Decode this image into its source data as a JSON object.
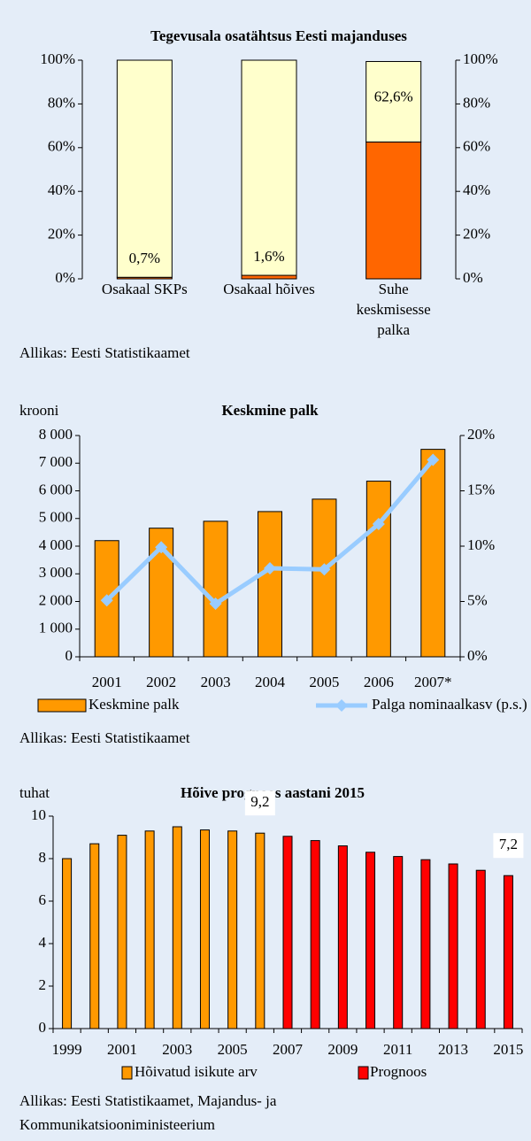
{
  "chart_data": [
    {
      "type": "bar",
      "stacked": true,
      "title": "Tegevusala osatähtsus Eesti majanduses",
      "categories": [
        "Osakaal SKPs",
        "Osakaal hõives",
        "Suhe keskmisesse palka"
      ],
      "series": [
        {
          "color": "#ff6600",
          "values": [
            0.7,
            1.6,
            62.6
          ],
          "value_labels": [
            "0,7%",
            "1,6%",
            "62,6%"
          ]
        },
        {
          "color": "#ffffcc",
          "values": [
            99.3,
            98.4,
            36.8
          ]
        }
      ],
      "ylim": [
        0,
        100
      ],
      "yticks": [
        {
          "value": 0,
          "label": "0%"
        },
        {
          "value": 20,
          "label": "20%"
        },
        {
          "value": 40,
          "label": "40%"
        },
        {
          "value": 60,
          "label": "60%"
        },
        {
          "value": 80,
          "label": "80%"
        },
        {
          "value": 100,
          "label": "100%"
        }
      ],
      "y2lim": [
        0,
        100
      ],
      "y2ticks": [
        {
          "value": 0,
          "label": "0%"
        },
        {
          "value": 20,
          "label": "20%"
        },
        {
          "value": 40,
          "label": "40%"
        },
        {
          "value": 60,
          "label": "60%"
        },
        {
          "value": 80,
          "label": "80%"
        },
        {
          "value": 100,
          "label": "100%"
        }
      ],
      "grid": false,
      "source": [
        "Allikas: Eesti Statistikaamet"
      ]
    },
    {
      "type": "bar",
      "title": "Keskmine palk",
      "y_label": "krooni",
      "categories": [
        "2001",
        "2002",
        "2003",
        "2004",
        "2005",
        "2006",
        "2007*"
      ],
      "series": [
        {
          "name": "Keskmine palk",
          "color": "#ff9900",
          "values": [
            4200,
            4650,
            4900,
            5250,
            5700,
            6350,
            7500
          ]
        },
        {
          "name": "Palga nominaalkasv (p.s.)",
          "type": "line",
          "axis": "y2",
          "color": "#99ccff",
          "values": [
            5.1,
            9.9,
            4.8,
            8.0,
            7.9,
            12.0,
            17.8
          ]
        }
      ],
      "ylim": [
        0,
        8000
      ],
      "yticks": [
        0,
        {
          "value": 1000,
          "label": "1 000"
        },
        {
          "value": 2000,
          "label": "2 000"
        },
        {
          "value": 3000,
          "label": "3 000"
        },
        {
          "value": 4000,
          "label": "4 000"
        },
        {
          "value": 5000,
          "label": "5 000"
        },
        {
          "value": 6000,
          "label": "6 000"
        },
        {
          "value": 7000,
          "label": "7 000"
        },
        {
          "value": 8000,
          "label": "8 000"
        }
      ],
      "y2lim": [
        0,
        20
      ],
      "y2ticks": [
        {
          "value": 0,
          "label": "0%"
        },
        {
          "value": 5,
          "label": "5%"
        },
        {
          "value": 10,
          "label": "10%"
        },
        {
          "value": 15,
          "label": "15%"
        },
        {
          "value": 20,
          "label": "20%"
        }
      ],
      "grid": false,
      "legend": "bottom",
      "source": [
        "Allikas: Eesti Statistikaamet"
      ]
    },
    {
      "type": "bar",
      "stacked": true,
      "title": "Hõive prognoos aastani 2015",
      "y_label": "tuhat",
      "categories": [
        "1999",
        null,
        "2001",
        null,
        "2003",
        null,
        "2005",
        null,
        "2007",
        null,
        "2009",
        null,
        "2011",
        null,
        "2013",
        null,
        "2015"
      ],
      "series": [
        {
          "name": "Hõivatud isikute arv",
          "color": "#ff9900",
          "values": [
            8.0,
            8.7,
            9.1,
            9.3,
            9.5,
            9.35,
            9.3,
            9.2,
            null,
            null,
            null,
            null,
            null,
            null,
            null,
            null,
            null
          ],
          "value_labels": [
            null,
            null,
            null,
            null,
            null,
            null,
            null,
            "9,2",
            null,
            null,
            null,
            null,
            null,
            null,
            null,
            null,
            null
          ]
        },
        {
          "name": "Prognoos",
          "color": "#ff0000",
          "values": [
            null,
            null,
            null,
            null,
            null,
            null,
            null,
            null,
            9.05,
            8.85,
            8.6,
            8.3,
            8.1,
            7.95,
            7.75,
            7.45,
            7.2
          ],
          "value_labels": [
            null,
            null,
            null,
            null,
            null,
            null,
            null,
            null,
            null,
            null,
            null,
            null,
            null,
            null,
            null,
            null,
            "7,2"
          ]
        }
      ],
      "ylim": [
        0,
        10
      ],
      "yticks": [
        0,
        2,
        4,
        6,
        8,
        10
      ],
      "grid": false,
      "legend": "bottom",
      "source": [
        "Allikas: Eesti Statistikaamet, Majandus- ja",
        "Kommunikatsiooniministeerium"
      ]
    }
  ]
}
